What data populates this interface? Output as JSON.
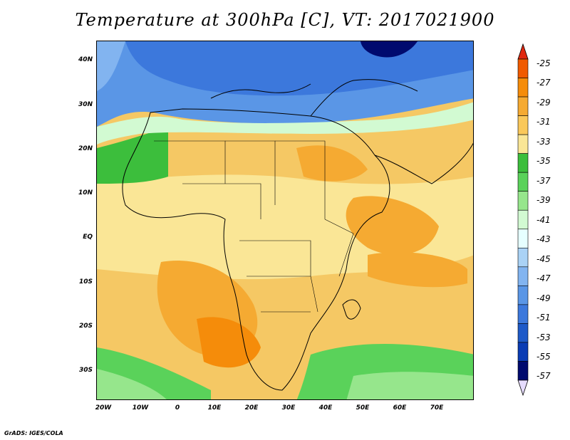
{
  "title": "Temperature at 300hPa [C], VT: 2017021900",
  "footer": "GrADS: IGES/COLA",
  "lat_labels": [
    "40N",
    "30N",
    "20N",
    "10N",
    "EQ",
    "10S",
    "20S",
    "30S"
  ],
  "lon_labels": [
    "20W",
    "10W",
    "0",
    "10E",
    "20E",
    "30E",
    "40E",
    "50E",
    "60E",
    "70E"
  ],
  "colorbar": {
    "labels": [
      "-25",
      "-27",
      "-29",
      "-31",
      "-33",
      "-35",
      "-37",
      "-39",
      "-41",
      "-43",
      "-45",
      "-47",
      "-49",
      "-51",
      "-53",
      "-55",
      "-57"
    ],
    "colors": [
      "#e02810",
      "#f05a00",
      "#f58c0a",
      "#f5aa32",
      "#fac85a",
      "#fae696",
      "#3cbe3c",
      "#5ad25a",
      "#96e68c",
      "#d2fad2",
      "#e6ffff",
      "#aad2f5",
      "#82b4f0",
      "#5a96e6",
      "#3c78dc",
      "#1e5ac8",
      "#0a3cb4",
      "#000a6e"
    ],
    "over_color": "#e02810",
    "under_color": "#e6dcff"
  },
  "fields": {
    "land_color": "#fae696",
    "ocean_warm": "#f5aa32",
    "cold_north": "#3c78dc"
  }
}
